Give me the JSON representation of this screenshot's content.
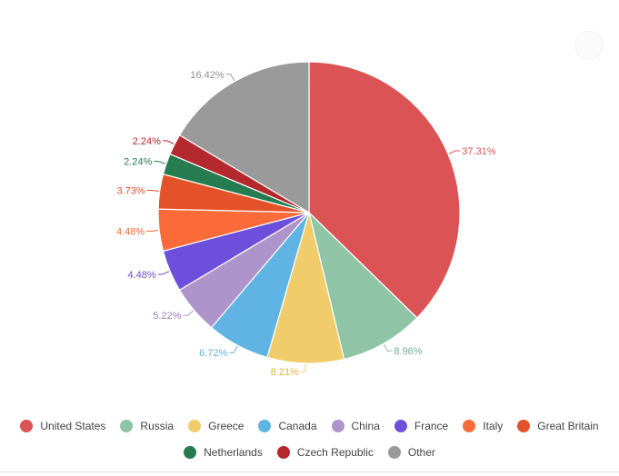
{
  "chart_data": {
    "type": "pie",
    "title": "",
    "series": [
      {
        "name": "United States",
        "value": 37.31,
        "label": "37.31%",
        "color": "#db5354"
      },
      {
        "name": "Russia",
        "value": 8.96,
        "label": "8.96%",
        "color": "#8fc4a6"
      },
      {
        "name": "Greece",
        "value": 8.21,
        "label": "8.21%",
        "color": "#f0cd6a"
      },
      {
        "name": "Canada",
        "value": 6.72,
        "label": "6.72%",
        "color": "#5fb4e4"
      },
      {
        "name": "China",
        "value": 5.22,
        "label": "5.22%",
        "color": "#ad94cb"
      },
      {
        "name": "France",
        "value": 4.48,
        "label": "4.48%",
        "color": "#6d4fdc"
      },
      {
        "name": "Italy",
        "value": 4.48,
        "label": "4.48%",
        "color": "#fb6b3a"
      },
      {
        "name": "Great Britain",
        "value": 3.73,
        "label": "3.73%",
        "color": "#e4522a"
      },
      {
        "name": "Netherlands",
        "value": 2.24,
        "label": "2.24%",
        "color": "#257c4f"
      },
      {
        "name": "Czech Republic",
        "value": 2.24,
        "label": "2.24%",
        "color": "#b4282e"
      },
      {
        "name": "Other",
        "value": 16.42,
        "label": "16.42%",
        "color": "#9a9a9a"
      }
    ],
    "legend_position": "bottom",
    "label_text_colors": {
      "Other": "#8f8f8f",
      "Russia": "#6fb08e",
      "Greece": "#dbb43a",
      "China": "#9a7fbf"
    }
  }
}
